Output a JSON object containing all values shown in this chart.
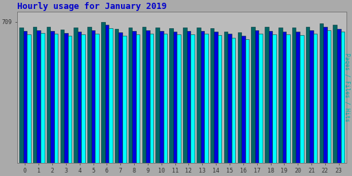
{
  "title": "Hourly usage for January 2019",
  "title_color": "#0000cc",
  "title_fontsize": 9,
  "xlabel_labels": [
    "0",
    "1",
    "2",
    "3",
    "4",
    "5",
    "6",
    "7",
    "8",
    "9",
    "10",
    "11",
    "12",
    "13",
    "14",
    "15",
    "16",
    "17",
    "18",
    "19",
    "20",
    "21",
    "22",
    "23"
  ],
  "ylabel_label": "Pages / Files / Hits",
  "ylabel_color": "#00aaaa",
  "background_color": "#aaaaaa",
  "plot_bg_color": "#bbbbbb",
  "bar_colors": [
    "#006666",
    "#0000dd",
    "#00ffff"
  ],
  "bar_edgecolor": "#003333",
  "ylim_min": 0,
  "ylim_max": 760,
  "ytick_val": 709,
  "bar_width": 0.28,
  "pages": [
    680,
    685,
    682,
    670,
    679,
    683,
    709,
    673,
    681,
    683,
    681,
    678,
    680,
    681,
    676,
    660,
    655,
    683,
    682,
    681,
    680,
    685,
    700,
    693
  ],
  "files": [
    662,
    668,
    664,
    653,
    661,
    665,
    693,
    655,
    663,
    666,
    663,
    660,
    662,
    663,
    659,
    648,
    640,
    665,
    663,
    661,
    660,
    665,
    682,
    675
  ],
  "hits": [
    645,
    652,
    648,
    638,
    644,
    648,
    678,
    638,
    647,
    650,
    648,
    644,
    646,
    648,
    643,
    630,
    623,
    648,
    646,
    644,
    642,
    648,
    666,
    658
  ]
}
